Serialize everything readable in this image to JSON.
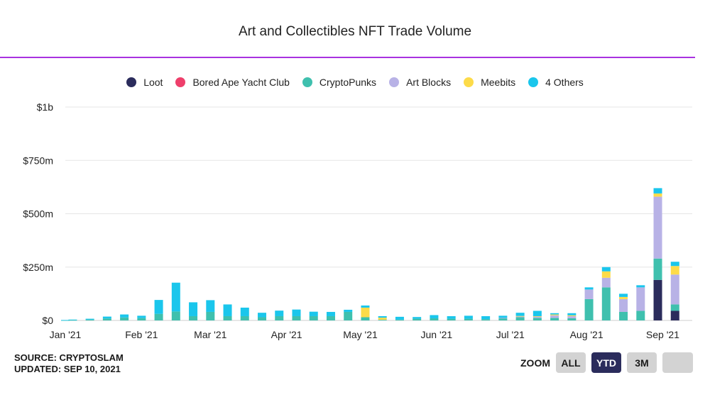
{
  "chart_data": {
    "type": "bar",
    "stacked": true,
    "title": "Art and Collectibles NFT Trade Volume",
    "legend_position": "top",
    "grid": true,
    "y_tick_labels": [
      "$0",
      "$250m",
      "$500m",
      "$750m",
      "$1b"
    ],
    "y_ticks": [
      0,
      250,
      500,
      750,
      1000
    ],
    "ylim": [
      0,
      1000
    ],
    "y_unit": "$m",
    "x_tick_labels": [
      "Jan '21",
      "Feb '21",
      "Mar '21",
      "Apr '21",
      "May '21",
      "Jun '21",
      "Jul '21",
      "Aug '21",
      "Sep '21"
    ],
    "x_tick_dates": [
      "2021-01-01",
      "2021-02-01",
      "2021-03-01",
      "2021-04-01",
      "2021-05-01",
      "2021-06-01",
      "2021-07-01",
      "2021-08-01",
      "2021-09-01"
    ],
    "categories": [
      "2021-01-01",
      "2021-01-04",
      "2021-01-11",
      "2021-01-18",
      "2021-01-25",
      "2021-02-01",
      "2021-02-08",
      "2021-02-15",
      "2021-02-22",
      "2021-03-01",
      "2021-03-08",
      "2021-03-15",
      "2021-03-22",
      "2021-03-29",
      "2021-04-05",
      "2021-04-12",
      "2021-04-19",
      "2021-04-26",
      "2021-05-03",
      "2021-05-10",
      "2021-05-17",
      "2021-05-24",
      "2021-05-31",
      "2021-06-07",
      "2021-06-14",
      "2021-06-21",
      "2021-06-28",
      "2021-07-05",
      "2021-07-12",
      "2021-07-19",
      "2021-07-26",
      "2021-08-02",
      "2021-08-09",
      "2021-08-16",
      "2021-08-23",
      "2021-08-30",
      "2021-09-06"
    ],
    "series": [
      {
        "name": "Loot",
        "color": "#2b2c5c",
        "values": [
          0,
          0,
          0,
          0,
          0,
          0,
          0,
          0,
          0,
          0,
          0,
          0,
          0,
          0,
          0,
          0,
          0,
          0,
          0,
          0,
          0,
          0,
          0,
          0,
          0,
          0,
          0,
          0,
          0,
          0,
          0,
          0,
          0,
          0,
          0,
          190,
          45
        ]
      },
      {
        "name": "Bored Ape Yacht Club",
        "color": "#ee3f6b",
        "values": [
          0,
          0,
          0,
          0,
          0,
          0,
          0,
          0,
          0,
          0,
          0,
          0,
          0,
          0,
          0,
          0,
          0,
          0,
          0,
          0,
          0,
          0,
          0,
          0,
          0,
          0,
          0,
          0,
          0,
          0,
          0,
          0,
          0,
          0,
          0,
          0,
          0
        ]
      },
      {
        "name": "CryptoPunks",
        "color": "#3fc0ae",
        "values": [
          1,
          2,
          4,
          9,
          14,
          11,
          31,
          42,
          20,
          40,
          20,
          20,
          15,
          20,
          20,
          20,
          20,
          40,
          15,
          3,
          4,
          8,
          10,
          8,
          8,
          6,
          10,
          15,
          12,
          12,
          10,
          100,
          155,
          40,
          45,
          100,
          30
        ]
      },
      {
        "name": "Art Blocks",
        "color": "#b8b2e6",
        "values": [
          0,
          0,
          0,
          0,
          0,
          0,
          0,
          0,
          0,
          0,
          0,
          0,
          0,
          0,
          0,
          0,
          0,
          0,
          0,
          0,
          0,
          0,
          0,
          0,
          0,
          0,
          2,
          4,
          6,
          12,
          10,
          45,
          45,
          60,
          110,
          290,
          140
        ]
      },
      {
        "name": "Meebits",
        "color": "#fddb49",
        "values": [
          0,
          0,
          0,
          0,
          0,
          0,
          0,
          0,
          0,
          0,
          0,
          0,
          0,
          0,
          0,
          0,
          0,
          0,
          45,
          10,
          0,
          0,
          0,
          0,
          0,
          0,
          0,
          2,
          2,
          4,
          4,
          0,
          30,
          10,
          0,
          15,
          40
        ]
      },
      {
        "name": "4 Others",
        "color": "#1ac6ec",
        "values": [
          1,
          2,
          4,
          9,
          14,
          11,
          65,
          135,
          65,
          55,
          55,
          40,
          21,
          26,
          31,
          21,
          20,
          10,
          10,
          7,
          13,
          8,
          15,
          12,
          14,
          14,
          10,
          15,
          25,
          6,
          10,
          10,
          20,
          15,
          10,
          25,
          20
        ]
      }
    ]
  },
  "legend": [
    {
      "label": "Loot",
      "color": "#2b2c5c"
    },
    {
      "label": "Bored Ape Yacht Club",
      "color": "#ee3f6b"
    },
    {
      "label": "CryptoPunks",
      "color": "#3fc0ae"
    },
    {
      "label": "Art Blocks",
      "color": "#b8b2e6"
    },
    {
      "label": "Meebits",
      "color": "#fddb49"
    },
    {
      "label": "4 Others",
      "color": "#1ac6ec"
    }
  ],
  "footer": {
    "source": "SOURCE: CRYPTOSLAM",
    "updated": "UPDATED: SEP 10, 2021"
  },
  "zoom": {
    "label": "ZOOM",
    "buttons": [
      {
        "label": "ALL",
        "active": false
      },
      {
        "label": "YTD",
        "active": true
      },
      {
        "label": "3M",
        "active": false
      },
      {
        "label": "",
        "active": false
      }
    ]
  },
  "colors": {
    "accent_rule": "#a832e0",
    "zoom_active_bg": "#2b2c5c",
    "zoom_inactive_bg": "#d3d3d3",
    "grid": "#e6e6e6",
    "axis": "#cfcfcf"
  }
}
